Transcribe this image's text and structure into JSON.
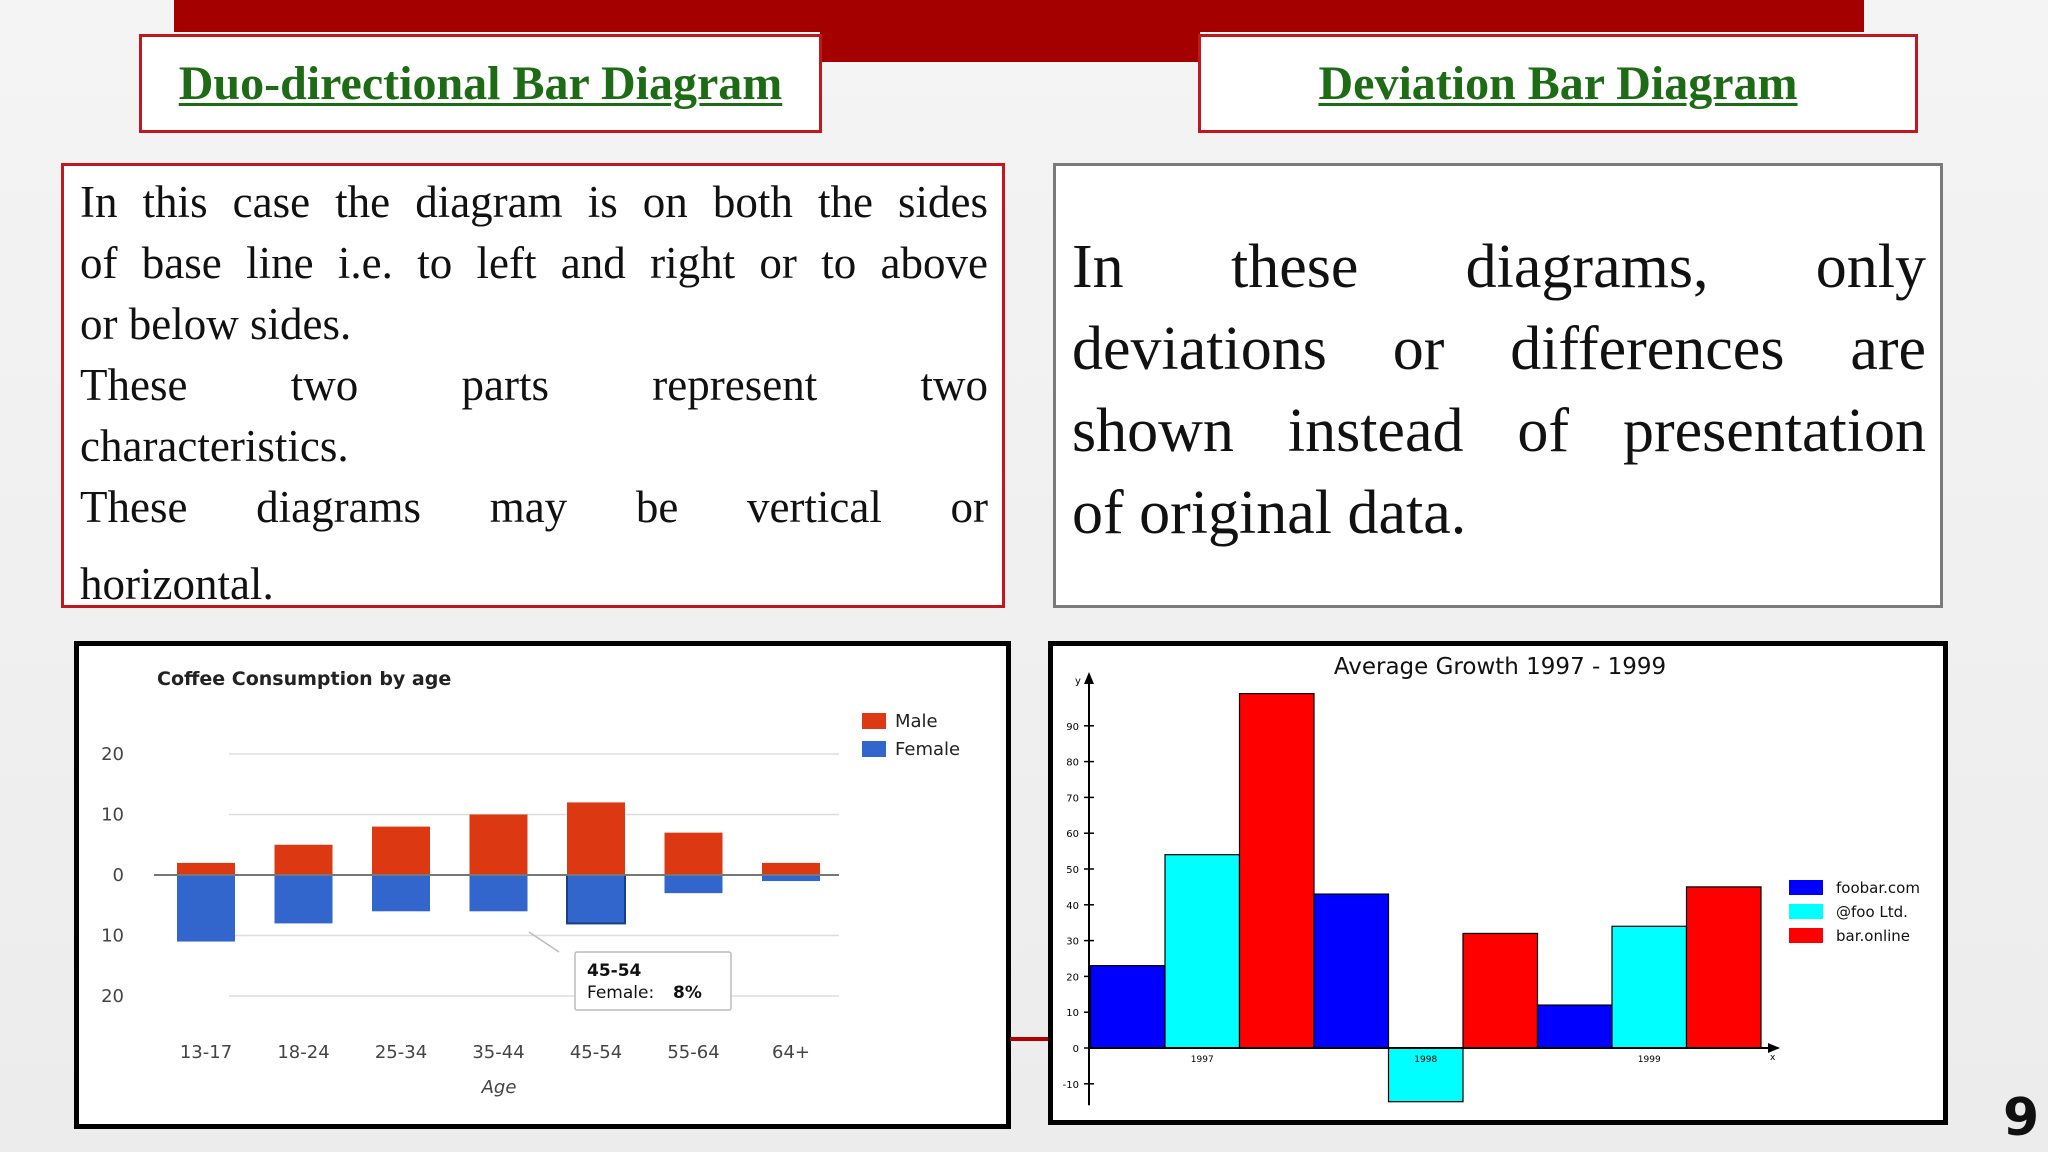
{
  "titles": {
    "left": "Duo-directional Bar Diagram",
    "right": "Deviation Bar Diagram"
  },
  "left_text": {
    "line1": "In this case the diagram is on both the sides",
    "line2": "of base line i.e. to left and right or to above",
    "line3": "or below sides.",
    "line4": "These two parts represent two",
    "line5": "characteristics.",
    "line6": "These diagrams may be vertical or",
    "line7": "horizontal."
  },
  "right_text": {
    "line1": "In these diagrams, only",
    "line2": "deviations or differences are",
    "line3": "shown instead of presentation",
    "line4": "of original data."
  },
  "page_number": "9",
  "chart_data": [
    {
      "type": "bar",
      "title": "Coffee Consumption by age",
      "xlabel": "Age",
      "ylabel": "",
      "categories": [
        "13-17",
        "18-24",
        "25-34",
        "35-44",
        "45-54",
        "55-64",
        "64+"
      ],
      "series": [
        {
          "name": "Male",
          "color": "#dc3912",
          "values": [
            2,
            5,
            8,
            10,
            12,
            7,
            2
          ]
        },
        {
          "name": "Female",
          "color": "#3366cc",
          "values": [
            -11,
            -8,
            -6,
            -6,
            -8,
            -3,
            -1
          ]
        }
      ],
      "ylim": [
        -20,
        20
      ],
      "yticks": [
        20,
        10,
        0,
        -10,
        -20
      ],
      "ytick_labels": [
        "20",
        "10",
        "0",
        "10",
        "20"
      ],
      "grid": true,
      "legend": "right",
      "tooltip": {
        "line1": "45-54",
        "label": "Female:",
        "value": "8%"
      }
    },
    {
      "type": "bar",
      "title": "Average Growth 1997 - 1999",
      "xlabel": "x",
      "ylabel": "y",
      "categories": [
        "1997",
        "1998",
        "1999"
      ],
      "series": [
        {
          "name": "foobar.com",
          "color": "#0000ff",
          "values": [
            23,
            43,
            12
          ]
        },
        {
          "name": "@foo Ltd.",
          "color": "#00ffff",
          "values": [
            54,
            -15,
            34
          ]
        },
        {
          "name": "bar.online",
          "color": "#ff0000",
          "values": [
            99,
            32,
            45
          ]
        }
      ],
      "ylim": [
        -15,
        100
      ],
      "yticks": [
        -10,
        0,
        10,
        20,
        30,
        40,
        50,
        60,
        70,
        80,
        90
      ],
      "grid": false,
      "legend": "right"
    }
  ]
}
